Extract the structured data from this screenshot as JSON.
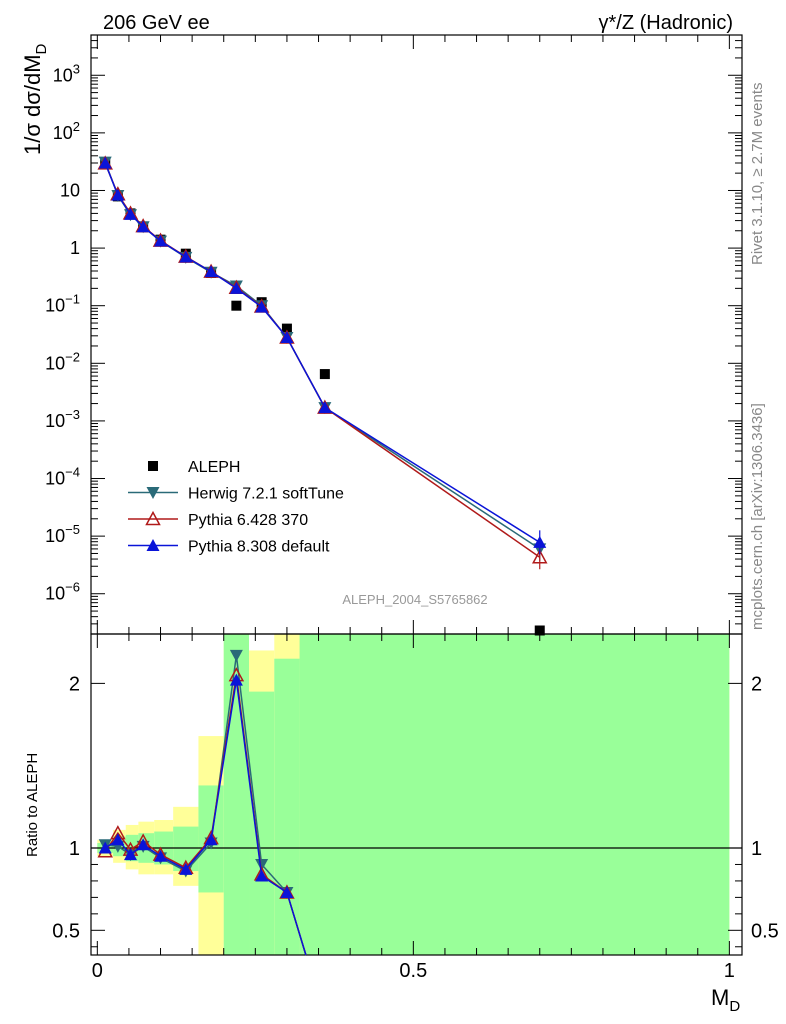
{
  "header": {
    "left": "206 GeV ee",
    "right": "γ*/Z (Hadronic)"
  },
  "side_labels": {
    "rivet": "Rivet 3.1.10, ≥ 2.7M events",
    "mcplots": "mcplots.cern.ch [arXiv:1306.3436]"
  },
  "watermark": "ALEPH_2004_S5765862",
  "chart_data": [
    {
      "type": "scatter",
      "ylabel_main": "1/σ  dσ/dM",
      "ylabel_sub": "D",
      "xlabel_main": "M",
      "xlabel_sub": "D",
      "xlim": [
        -0.01,
        1.02
      ],
      "ylim": [
        2e-07,
        5000
      ],
      "log_y": true,
      "y_ticks": [
        {
          "value": 1000.0,
          "base": "10",
          "exp": "3"
        },
        {
          "value": 100.0,
          "base": "10",
          "exp": "2"
        },
        {
          "value": 10,
          "base": "10",
          "exp": ""
        },
        {
          "value": 1,
          "base": "1",
          "exp": ""
        },
        {
          "value": 0.1,
          "base": "10",
          "exp": "−1"
        },
        {
          "value": 0.01,
          "base": "10",
          "exp": "−2"
        },
        {
          "value": 0.001,
          "base": "10",
          "exp": "−3"
        },
        {
          "value": 0.0001,
          "base": "10",
          "exp": "−4"
        },
        {
          "value": 1e-05,
          "base": "10",
          "exp": "−5"
        },
        {
          "value": 1e-06,
          "base": "10",
          "exp": "−6"
        }
      ],
      "series": [
        {
          "name": "ALEPH",
          "color": "#000000",
          "marker": "square",
          "x": [
            0.0125,
            0.0325,
            0.0525,
            0.0725,
            0.1,
            0.14,
            0.18,
            0.22,
            0.26,
            0.3,
            0.36,
            0.7
          ],
          "y": [
            30,
            7.9,
            4.0,
            2.3,
            1.4,
            0.8,
            0.37,
            0.1,
            0.115,
            0.04,
            0.0065,
            2.3e-07
          ]
        },
        {
          "name": "Herwig 7.2.1 softTune",
          "color": "#2a6a78",
          "marker": "triangle-down",
          "x": [
            0.0125,
            0.0325,
            0.0525,
            0.0725,
            0.1,
            0.14,
            0.18,
            0.22,
            0.26,
            0.3,
            0.36,
            0.7
          ],
          "y": [
            31,
            8.2,
            3.8,
            2.35,
            1.32,
            0.69,
            0.38,
            0.22,
            0.1,
            0.028,
            0.0017,
            6e-06
          ]
        },
        {
          "name": "Pythia 6.428 370",
          "color": "#b01a1a",
          "marker": "triangle-open",
          "x": [
            0.0125,
            0.0325,
            0.0525,
            0.0725,
            0.1,
            0.14,
            0.18,
            0.22,
            0.26,
            0.3,
            0.36,
            0.7
          ],
          "y": [
            29.5,
            8.6,
            4.0,
            2.4,
            1.35,
            0.71,
            0.39,
            0.205,
            0.097,
            0.028,
            0.0017,
            4.3e-06
          ]
        },
        {
          "name": "Pythia 8.308 default",
          "color": "#0a14d8",
          "marker": "triangle-up",
          "x": [
            0.0125,
            0.0325,
            0.0525,
            0.0725,
            0.1,
            0.14,
            0.18,
            0.22,
            0.26,
            0.3,
            0.36,
            0.7
          ],
          "y": [
            30,
            8.3,
            3.85,
            2.35,
            1.33,
            0.7,
            0.39,
            0.2,
            0.095,
            0.028,
            0.0017,
            7.8e-06
          ]
        }
      ],
      "legend_placement": "lower-left"
    },
    {
      "type": "line",
      "ylabel": "Ratio to ALEPH",
      "xlim": [
        -0.01,
        1.02
      ],
      "ylim": [
        0.35,
        2.3
      ],
      "y_ticks": [
        0.5,
        1,
        2
      ],
      "y_tick_labels": [
        "0.5",
        "1",
        "2"
      ],
      "x_ticks": [
        0,
        0.5,
        1
      ],
      "x_tick_labels": [
        "0",
        "0.5",
        "1"
      ],
      "reference_line": 1,
      "bands": [
        {
          "x0": 0.0,
          "x1": 0.025,
          "g_lo": 0.97,
          "g_hi": 1.03,
          "y_lo": 0.95,
          "y_hi": 1.05
        },
        {
          "x0": 0.025,
          "x1": 0.045,
          "g_lo": 0.95,
          "g_hi": 1.07,
          "y_lo": 0.91,
          "y_hi": 1.11
        },
        {
          "x0": 0.045,
          "x1": 0.065,
          "g_lo": 0.92,
          "g_hi": 1.08,
          "y_lo": 0.87,
          "y_hi": 1.14
        },
        {
          "x0": 0.065,
          "x1": 0.09,
          "g_lo": 0.91,
          "g_hi": 1.09,
          "y_lo": 0.84,
          "y_hi": 1.16
        },
        {
          "x0": 0.09,
          "x1": 0.12,
          "g_lo": 0.9,
          "g_hi": 1.1,
          "y_lo": 0.84,
          "y_hi": 1.17
        },
        {
          "x0": 0.12,
          "x1": 0.16,
          "g_lo": 0.86,
          "g_hi": 1.13,
          "y_lo": 0.77,
          "y_hi": 1.25
        },
        {
          "x0": 0.16,
          "x1": 0.2,
          "g_lo": 0.73,
          "g_hi": 1.38,
          "y_lo": 0.35,
          "y_hi": 1.68
        },
        {
          "x0": 0.2,
          "x1": 0.24,
          "g_lo": 0.35,
          "g_hi": 2.3,
          "y_lo": 0.42,
          "y_hi": 2.3
        },
        {
          "x0": 0.24,
          "x1": 0.28,
          "g_lo": 0.35,
          "g_hi": 1.95,
          "y_lo": 0.35,
          "y_hi": 2.2
        },
        {
          "x0": 0.28,
          "x1": 0.32,
          "g_lo": 0.35,
          "g_hi": 2.15,
          "y_lo": 0.35,
          "y_hi": 2.3
        },
        {
          "x0": 0.32,
          "x1": 1.0,
          "g_lo": 0.35,
          "g_hi": 2.3,
          "y_lo": 0.35,
          "y_hi": 2.3
        }
      ],
      "series": [
        {
          "name": "Herwig 7.2.1 softTune",
          "color": "#2a6a78",
          "marker": "triangle-down",
          "x": [
            0.0125,
            0.0325,
            0.0525,
            0.0725,
            0.1,
            0.14,
            0.18,
            0.22,
            0.26,
            0.3,
            0.33
          ],
          "y": [
            1.02,
            1.01,
            0.96,
            1.01,
            0.94,
            0.86,
            1.03,
            2.17,
            0.9,
            0.73,
            0.3
          ]
        },
        {
          "name": "Pythia 6.428 370",
          "color": "#b01a1a",
          "marker": "triangle-open",
          "x": [
            0.0125,
            0.0325,
            0.0525,
            0.0725,
            0.1,
            0.14,
            0.18,
            0.22,
            0.26,
            0.3,
            0.33
          ],
          "y": [
            0.98,
            1.09,
            0.99,
            1.04,
            0.96,
            0.88,
            1.06,
            2.05,
            0.84,
            0.73,
            0.3
          ]
        },
        {
          "name": "Pythia 8.308 default",
          "color": "#0a14d8",
          "marker": "triangle-up",
          "x": [
            0.0125,
            0.0325,
            0.0525,
            0.0725,
            0.1,
            0.14,
            0.18,
            0.22,
            0.26,
            0.3,
            0.33
          ],
          "y": [
            1.0,
            1.05,
            0.96,
            1.02,
            0.95,
            0.87,
            1.05,
            2.02,
            0.83,
            0.73,
            0.3
          ]
        }
      ]
    }
  ]
}
